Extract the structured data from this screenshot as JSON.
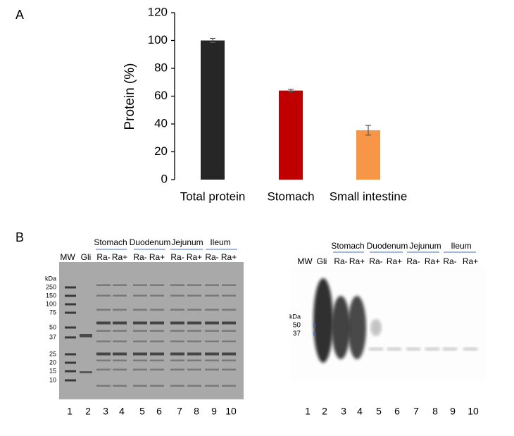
{
  "panel_labels": [
    "A",
    "B"
  ],
  "chart_data": {
    "type": "bar",
    "y_label": "Protein (%)",
    "categories": [
      "Total protein",
      "Stomach",
      "Small intestine"
    ],
    "values": [
      100,
      64,
      35.5
    ],
    "errors": [
      1.5,
      1,
      3.5
    ],
    "colors": [
      "#262626",
      "#c00000",
      "#f79646"
    ],
    "ylim": [
      0,
      120
    ],
    "yticks": [
      0,
      20,
      40,
      60,
      80,
      100,
      120
    ]
  },
  "gels": [
    {
      "groups": [
        "Stomach",
        "Duodenum",
        "Jejunum",
        "Ileum"
      ],
      "lanes": [
        "MW",
        "Gli",
        "Ra-",
        "Ra+",
        "Ra-",
        "Ra+",
        "Ra-",
        "Ra+",
        "Ra-",
        "Ra+"
      ],
      "kda_title": "kDa",
      "markers": [
        250,
        150,
        100,
        75,
        50,
        37,
        25,
        20,
        15,
        10
      ],
      "lane_numbers": [
        1,
        2,
        3,
        4,
        5,
        6,
        7,
        8,
        9,
        10
      ]
    },
    {
      "groups": [
        "Stomach",
        "Duodenum",
        "Jejunum",
        "Ileum"
      ],
      "lanes": [
        "MW",
        "Gli",
        "Ra-",
        "Ra+",
        "Ra-",
        "Ra+",
        "Ra-",
        "Ra+",
        "Ra-",
        "Ra+"
      ],
      "kda_title": "kDa",
      "markers": [
        50,
        37
      ],
      "lane_numbers": [
        1,
        2,
        3,
        4,
        5,
        6,
        7,
        8,
        9,
        10
      ]
    }
  ]
}
